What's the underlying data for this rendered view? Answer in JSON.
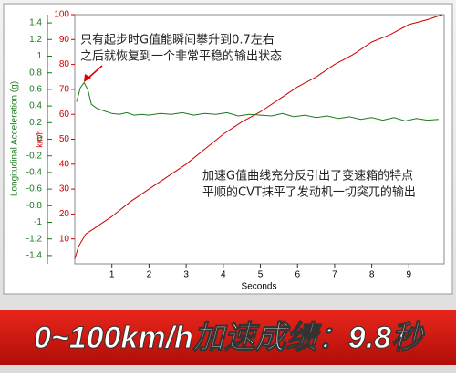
{
  "chart_data": {
    "type": "line",
    "xlabel": "Seconds",
    "ylabel": "Longitudinal Acceleration (g)",
    "y2label": "km/h",
    "xlim": [
      0,
      9.95
    ],
    "xticks": [
      1,
      2,
      3,
      4,
      5,
      6,
      7,
      8,
      9
    ],
    "ylim": [
      -1.5,
      1.5
    ],
    "yticks": [
      -1.4,
      -1.2,
      -1,
      -0.8,
      -0.6,
      -0.4,
      -0.2,
      0,
      0.2,
      0.4,
      0.6,
      0.8,
      1,
      1.2,
      1.4
    ],
    "y2lim": [
      0,
      100
    ],
    "y2ticks": [
      10,
      20,
      30,
      40,
      50,
      60,
      70,
      80,
      90,
      100
    ],
    "series": [
      {
        "name": "km/h",
        "color": "#cc0000",
        "axis": "y2",
        "x": [
          0,
          0.1,
          0.3,
          0.5,
          1,
          1.5,
          2,
          2.5,
          3,
          3.5,
          4,
          4.5,
          5,
          5.5,
          6,
          6.5,
          7,
          7.5,
          8,
          8.5,
          9,
          9.5,
          9.9
        ],
        "values": [
          2,
          7,
          12,
          14,
          19,
          25,
          30,
          35,
          40,
          46,
          52,
          57,
          61,
          66,
          71,
          75,
          80,
          84,
          89,
          92,
          96,
          98,
          100
        ]
      },
      {
        "name": "Longitudinal Acceleration (g)",
        "color": "#1a7a1a",
        "x": [
          0.05,
          0.15,
          0.25,
          0.35,
          0.45,
          0.6,
          0.8,
          1.0,
          1.2,
          1.4,
          1.6,
          1.8,
          2.0,
          2.3,
          2.6,
          2.9,
          3.2,
          3.5,
          3.8,
          4.1,
          4.4,
          4.7,
          5.0,
          5.3,
          5.6,
          5.9,
          6.2,
          6.5,
          6.8,
          7.1,
          7.4,
          7.7,
          8.0,
          8.3,
          8.6,
          8.9,
          9.2,
          9.5,
          9.8
        ],
        "values": [
          0.45,
          0.62,
          0.68,
          0.6,
          0.42,
          0.37,
          0.34,
          0.31,
          0.3,
          0.32,
          0.29,
          0.3,
          0.29,
          0.31,
          0.3,
          0.32,
          0.29,
          0.31,
          0.3,
          0.32,
          0.28,
          0.3,
          0.29,
          0.28,
          0.31,
          0.27,
          0.29,
          0.26,
          0.28,
          0.25,
          0.27,
          0.24,
          0.26,
          0.23,
          0.26,
          0.22,
          0.25,
          0.23,
          0.24
        ]
      }
    ],
    "annotations": [
      "只有起步时G值能瞬间攀升到0.7左右",
      "之后就恢复到一个非常平稳的输出状态",
      "加速G值曲线充分反引出了变速箱的特点",
      "平顺的CVT抹平了发动机一切突兀的输出"
    ],
    "banner": "0~100km/h加速成绩：9.8秒"
  }
}
